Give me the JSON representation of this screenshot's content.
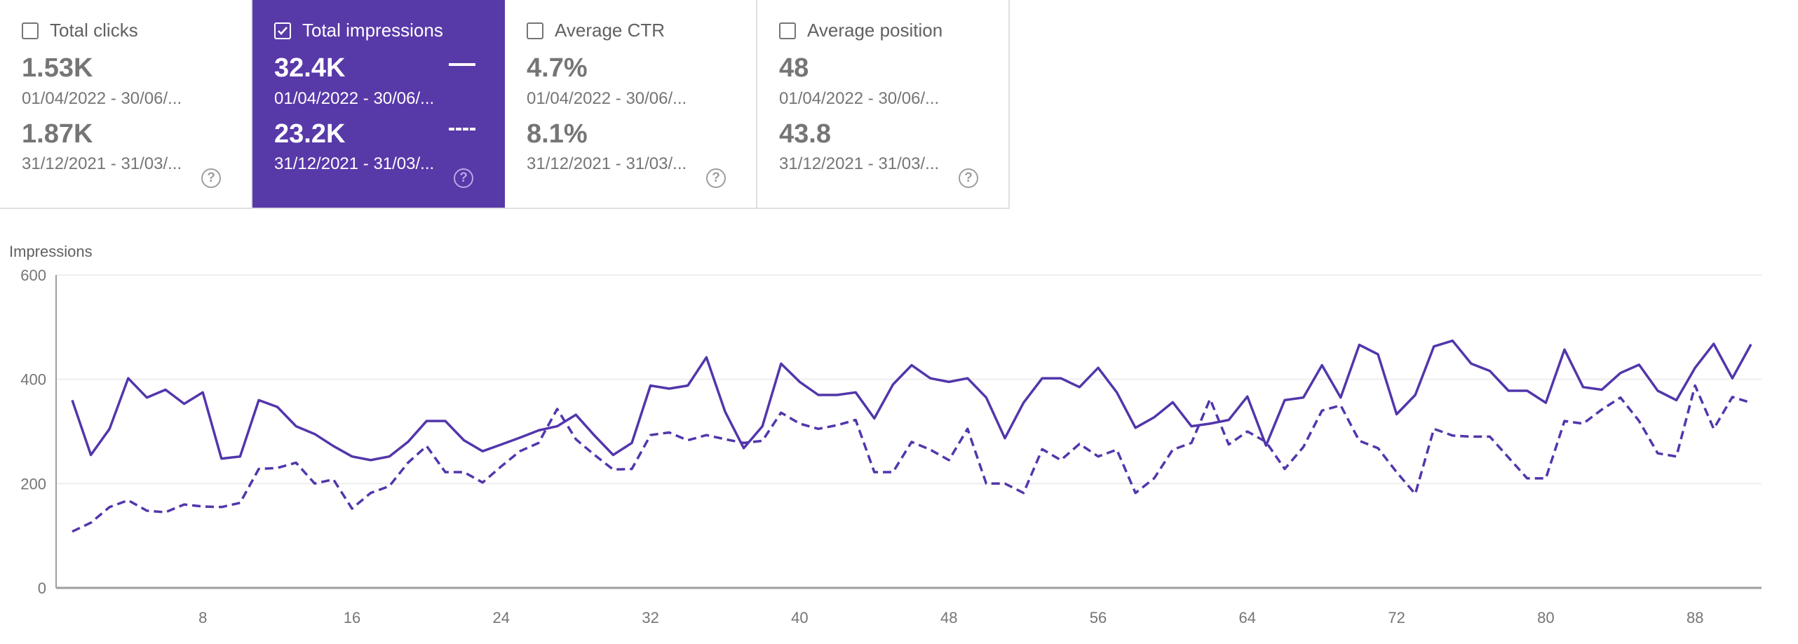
{
  "cards": [
    {
      "title": "Total clicks",
      "checked": false,
      "value1": "1.53K",
      "date1": "01/04/2022 - 30/06/...",
      "value2": "1.87K",
      "date2": "31/12/2021 - 31/03/...",
      "help": "?"
    },
    {
      "title": "Total impressions",
      "checked": true,
      "value1": "32.4K",
      "date1": "01/04/2022 - 30/06/...",
      "value2": "23.2K",
      "date2": "31/12/2021 - 31/03/...",
      "help": "?"
    },
    {
      "title": "Average CTR",
      "checked": false,
      "value1": "4.7%",
      "date1": "01/04/2022 - 30/06/...",
      "value2": "8.1%",
      "date2": "31/12/2021 - 31/03/...",
      "help": "?"
    },
    {
      "title": "Average position",
      "checked": false,
      "value1": "48",
      "date1": "01/04/2022 - 30/06/...",
      "value2": "43.8",
      "date2": "31/12/2021 - 31/03/...",
      "help": "?"
    }
  ],
  "colors": {
    "accent": "#5839a8",
    "line": "#5236ab",
    "grid": "#eeeeee"
  },
  "chart_data": {
    "type": "line",
    "ylabel": "Impressions",
    "xlabel": "",
    "ylim": [
      0,
      600
    ],
    "yticks": [
      "0",
      "200",
      "400",
      "600"
    ],
    "xticks": [
      "8",
      "16",
      "24",
      "32",
      "40",
      "48",
      "56",
      "64",
      "72",
      "80",
      "88"
    ],
    "grid": true,
    "series": [
      {
        "name": "01/04/2022 - 30/06/...",
        "style": "solid",
        "values": [
          360,
          255,
          305,
          402,
          365,
          380,
          353,
          375,
          248,
          252,
          360,
          347,
          310,
          295,
          272,
          252,
          245,
          252,
          280,
          320,
          320,
          283,
          262,
          275,
          288,
          302,
          310,
          332,
          292,
          255,
          278,
          388,
          382,
          388,
          442,
          338,
          268,
          310,
          430,
          395,
          370,
          370,
          375,
          325,
          390,
          427,
          402,
          395,
          402,
          365,
          287,
          355,
          402,
          402,
          385,
          422,
          375,
          307,
          327,
          356,
          310,
          315,
          322,
          367,
          273,
          360,
          365,
          427,
          365,
          466,
          448,
          333,
          370,
          463,
          474,
          430,
          416,
          378,
          378,
          355,
          457,
          385,
          380,
          412,
          428,
          378,
          360,
          422,
          468,
          402,
          467
        ]
      },
      {
        "name": "31/12/2021 - 31/03/...",
        "style": "dashed",
        "values": [
          108,
          125,
          155,
          168,
          148,
          145,
          160,
          156,
          155,
          163,
          228,
          230,
          240,
          200,
          208,
          152,
          182,
          195,
          240,
          272,
          222,
          222,
          202,
          233,
          262,
          278,
          343,
          285,
          255,
          227,
          228,
          293,
          298,
          283,
          293,
          285,
          278,
          282,
          336,
          315,
          305,
          312,
          322,
          222,
          222,
          280,
          265,
          245,
          305,
          200,
          200,
          182,
          266,
          245,
          276,
          252,
          265,
          182,
          210,
          265,
          278,
          362,
          275,
          300,
          280,
          228,
          270,
          340,
          350,
          282,
          268,
          222,
          180,
          305,
          292,
          290,
          290,
          250,
          210,
          210,
          320,
          315,
          342,
          365,
          320,
          258,
          252,
          388,
          305,
          366,
          355
        ]
      }
    ]
  }
}
